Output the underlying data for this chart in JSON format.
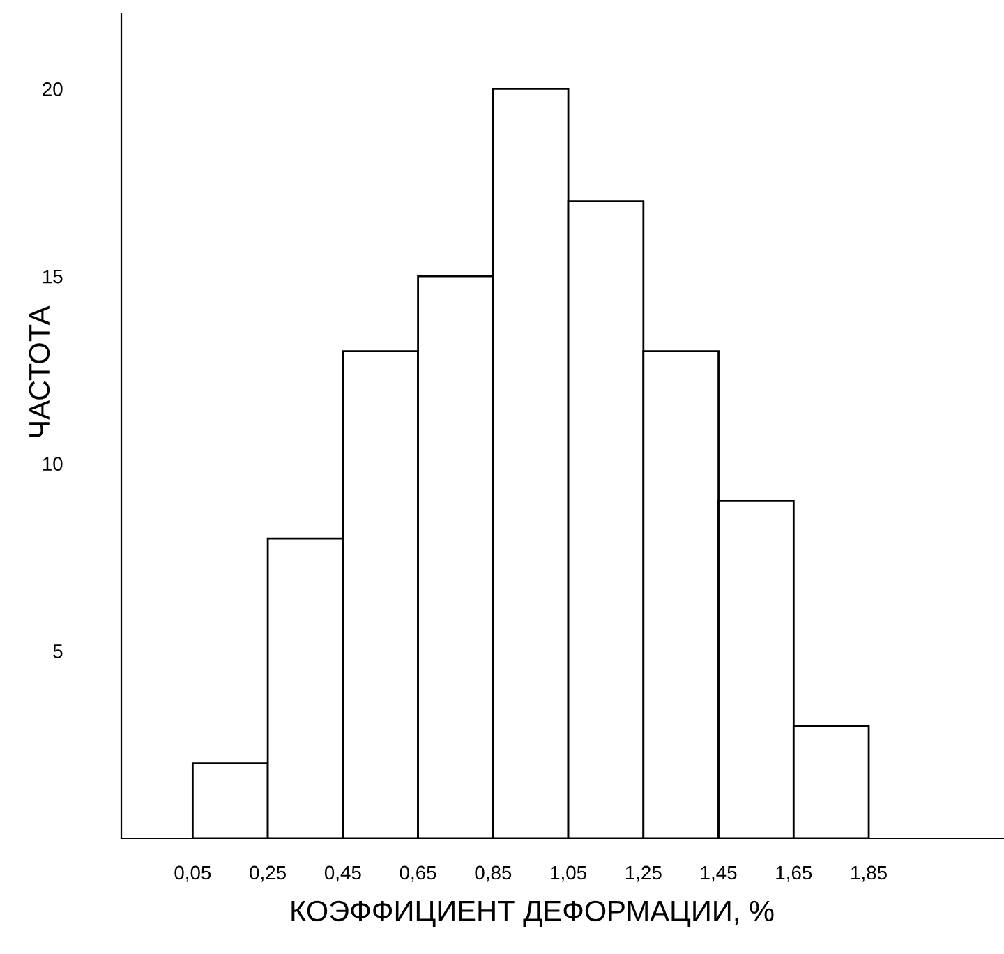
{
  "chart_data": {
    "type": "histogram",
    "xlabel": "КОЭФФИЦИЕНТ ДЕФОРМАЦИИ, %",
    "ylabel": "ЧАСТОТА",
    "bins": [
      0.05,
      0.25,
      0.45,
      0.65,
      0.85,
      1.05,
      1.25,
      1.45,
      1.65,
      1.85
    ],
    "values": [
      2,
      8,
      13,
      15,
      20,
      17,
      13,
      9,
      3
    ],
    "color": "#ffffff",
    "xlim": [
      -0.14,
      2.21
    ],
    "ylim": [
      0,
      22
    ],
    "xticks": [
      {
        "value": 0.05,
        "label": "0,05"
      },
      {
        "value": 0.25,
        "label": "0,25"
      },
      {
        "value": 0.45,
        "label": "0,45"
      },
      {
        "value": 0.65,
        "label": "0,65"
      },
      {
        "value": 0.85,
        "label": "0,85"
      },
      {
        "value": 1.05,
        "label": "1,05"
      },
      {
        "value": 1.25,
        "label": "1,25"
      },
      {
        "value": 1.45,
        "label": "1,45"
      },
      {
        "value": 1.65,
        "label": "1,65"
      },
      {
        "value": 1.85,
        "label": "1,85"
      }
    ],
    "yticks": [
      5,
      10,
      15,
      20
    ],
    "grid": false
  }
}
